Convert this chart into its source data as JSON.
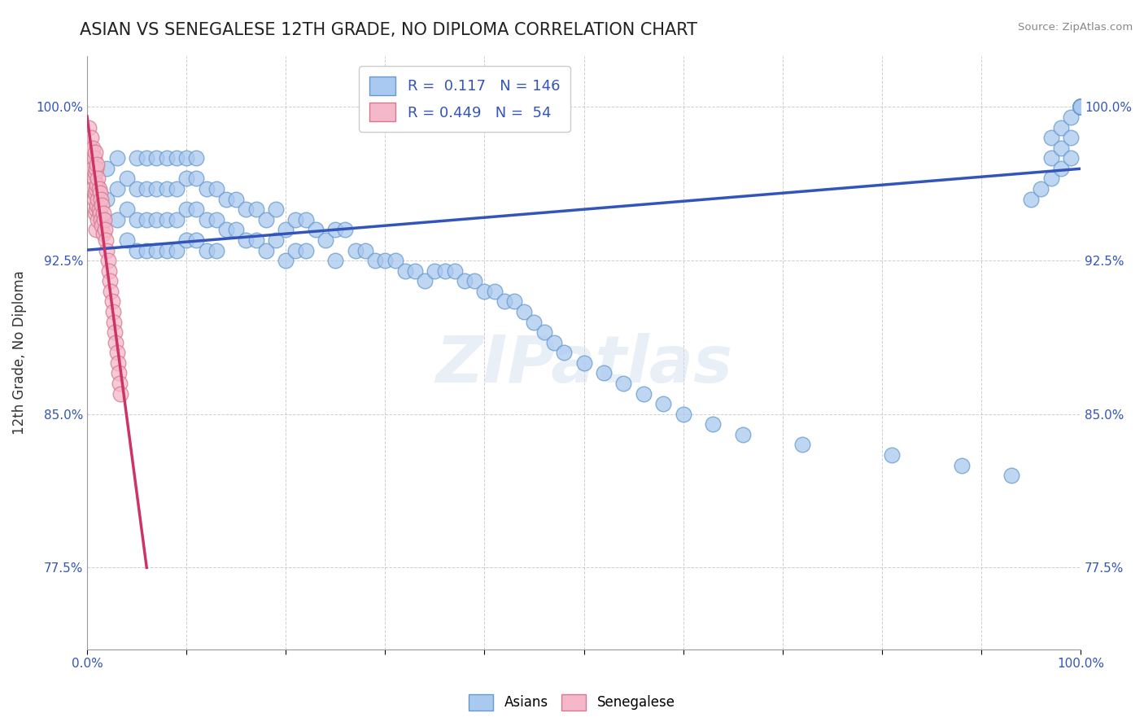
{
  "title": "ASIAN VS SENEGALESE 12TH GRADE, NO DIPLOMA CORRELATION CHART",
  "source": "Source: ZipAtlas.com",
  "ylabel": "12th Grade, No Diploma",
  "xlabel": "",
  "watermark": "ZIPatlas",
  "legend_asian_R": 0.117,
  "legend_asian_N": 146,
  "legend_senegalese_R": 0.449,
  "legend_senegalese_N": 54,
  "asian_color": "#aac9f0",
  "asian_edge": "#6699cc",
  "senegalese_color": "#f5b8ca",
  "senegalese_edge": "#d47890",
  "asian_line_color": "#3355bb",
  "senegalese_line_color": "#cc3366",
  "background_color": "#ffffff",
  "grid_color": "#bbbbbb",
  "xlim": [
    0.0,
    1.0
  ],
  "ylim": [
    0.735,
    1.025
  ],
  "yticks": [
    0.775,
    0.85,
    0.925,
    1.0
  ],
  "ytick_labels": [
    "77.5%",
    "85.0%",
    "92.5%",
    "100.0%"
  ],
  "xtick_labels": [
    "0.0%",
    "100.0%"
  ],
  "title_color": "#222222",
  "title_fontsize": 15,
  "axis_label_fontsize": 12,
  "tick_fontsize": 11,
  "legend_fontsize": 13,
  "asian_x": [
    0.01,
    0.02,
    0.02,
    0.03,
    0.03,
    0.03,
    0.04,
    0.04,
    0.04,
    0.05,
    0.05,
    0.05,
    0.05,
    0.06,
    0.06,
    0.06,
    0.06,
    0.07,
    0.07,
    0.07,
    0.07,
    0.08,
    0.08,
    0.08,
    0.08,
    0.09,
    0.09,
    0.09,
    0.09,
    0.1,
    0.1,
    0.1,
    0.1,
    0.11,
    0.11,
    0.11,
    0.11,
    0.12,
    0.12,
    0.12,
    0.13,
    0.13,
    0.13,
    0.14,
    0.14,
    0.15,
    0.15,
    0.16,
    0.16,
    0.17,
    0.17,
    0.18,
    0.18,
    0.19,
    0.19,
    0.2,
    0.2,
    0.21,
    0.21,
    0.22,
    0.22,
    0.23,
    0.24,
    0.25,
    0.25,
    0.26,
    0.27,
    0.28,
    0.29,
    0.3,
    0.31,
    0.32,
    0.33,
    0.34,
    0.35,
    0.36,
    0.37,
    0.38,
    0.39,
    0.4,
    0.41,
    0.42,
    0.43,
    0.44,
    0.45,
    0.46,
    0.47,
    0.48,
    0.5,
    0.52,
    0.54,
    0.56,
    0.58,
    0.6,
    0.63,
    0.66,
    0.72,
    0.81,
    0.88,
    0.93,
    0.95,
    0.96,
    0.97,
    0.97,
    0.97,
    0.98,
    0.98,
    0.98,
    0.99,
    0.99,
    0.99,
    1.0,
    1.0,
    1.0,
    1.0,
    1.0,
    1.0,
    1.0,
    1.0,
    1.0,
    1.0,
    1.0,
    1.0,
    1.0,
    1.0,
    1.0,
    1.0,
    1.0,
    1.0,
    1.0,
    1.0,
    1.0,
    1.0,
    1.0,
    1.0,
    1.0,
    1.0,
    1.0,
    1.0,
    1.0,
    1.0,
    1.0,
    1.0,
    1.0,
    1.0,
    1.0
  ],
  "asian_y": [
    0.96,
    0.97,
    0.955,
    0.975,
    0.96,
    0.945,
    0.965,
    0.95,
    0.935,
    0.975,
    0.96,
    0.945,
    0.93,
    0.975,
    0.96,
    0.945,
    0.93,
    0.975,
    0.96,
    0.945,
    0.93,
    0.975,
    0.96,
    0.945,
    0.93,
    0.975,
    0.96,
    0.945,
    0.93,
    0.975,
    0.965,
    0.95,
    0.935,
    0.975,
    0.965,
    0.95,
    0.935,
    0.96,
    0.945,
    0.93,
    0.96,
    0.945,
    0.93,
    0.955,
    0.94,
    0.955,
    0.94,
    0.95,
    0.935,
    0.95,
    0.935,
    0.945,
    0.93,
    0.95,
    0.935,
    0.94,
    0.925,
    0.945,
    0.93,
    0.945,
    0.93,
    0.94,
    0.935,
    0.94,
    0.925,
    0.94,
    0.93,
    0.93,
    0.925,
    0.925,
    0.925,
    0.92,
    0.92,
    0.915,
    0.92,
    0.92,
    0.92,
    0.915,
    0.915,
    0.91,
    0.91,
    0.905,
    0.905,
    0.9,
    0.895,
    0.89,
    0.885,
    0.88,
    0.875,
    0.87,
    0.865,
    0.86,
    0.855,
    0.85,
    0.845,
    0.84,
    0.835,
    0.83,
    0.825,
    0.82,
    0.955,
    0.96,
    0.985,
    0.975,
    0.965,
    0.99,
    0.98,
    0.97,
    0.995,
    0.985,
    0.975,
    1.0,
    1.0,
    1.0,
    1.0,
    1.0,
    1.0,
    1.0,
    1.0,
    1.0,
    1.0,
    1.0,
    1.0,
    1.0,
    1.0,
    1.0,
    1.0,
    1.0,
    1.0,
    1.0,
    1.0,
    1.0,
    1.0,
    1.0,
    1.0,
    1.0,
    1.0,
    1.0,
    1.0,
    1.0,
    1.0,
    1.0,
    1.0,
    1.0,
    1.0,
    1.0
  ],
  "sene_x": [
    0.002,
    0.003,
    0.004,
    0.004,
    0.005,
    0.005,
    0.006,
    0.006,
    0.006,
    0.007,
    0.007,
    0.007,
    0.008,
    0.008,
    0.008,
    0.008,
    0.009,
    0.009,
    0.009,
    0.009,
    0.01,
    0.01,
    0.01,
    0.011,
    0.011,
    0.011,
    0.012,
    0.012,
    0.013,
    0.013,
    0.014,
    0.014,
    0.015,
    0.015,
    0.016,
    0.016,
    0.017,
    0.018,
    0.019,
    0.02,
    0.021,
    0.022,
    0.023,
    0.024,
    0.025,
    0.026,
    0.027,
    0.028,
    0.029,
    0.03,
    0.031,
    0.032,
    0.033,
    0.034
  ],
  "sene_y": [
    0.99,
    0.98,
    0.985,
    0.975,
    0.978,
    0.968,
    0.98,
    0.97,
    0.96,
    0.975,
    0.965,
    0.955,
    0.978,
    0.968,
    0.958,
    0.948,
    0.97,
    0.96,
    0.95,
    0.94,
    0.972,
    0.962,
    0.952,
    0.965,
    0.955,
    0.945,
    0.96,
    0.95,
    0.958,
    0.948,
    0.955,
    0.945,
    0.952,
    0.942,
    0.948,
    0.938,
    0.945,
    0.94,
    0.935,
    0.93,
    0.925,
    0.92,
    0.915,
    0.91,
    0.905,
    0.9,
    0.895,
    0.89,
    0.885,
    0.88,
    0.875,
    0.87,
    0.865,
    0.86
  ]
}
